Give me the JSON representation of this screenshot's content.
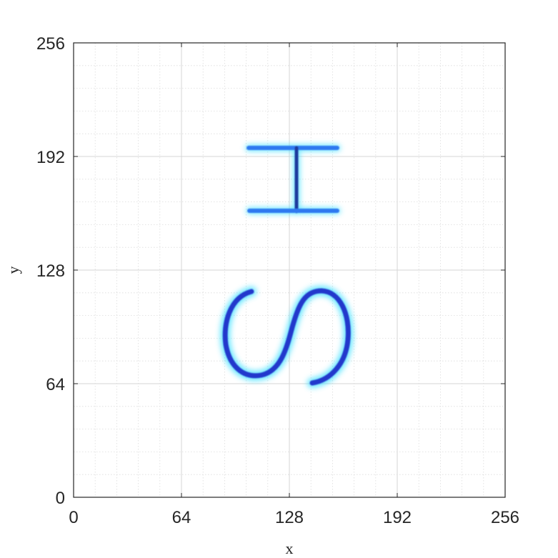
{
  "chart_data": {
    "type": "heatmap",
    "title": "",
    "xlabel": "x",
    "ylabel": "y",
    "xlim": [
      0,
      256
    ],
    "ylim": [
      0,
      256
    ],
    "xticks": [
      "0",
      "64",
      "128",
      "192",
      "256"
    ],
    "yticks": [
      "0",
      "64",
      "128",
      "192",
      "256"
    ],
    "grid": true,
    "minor_grid": true,
    "colormap": [
      "#ffffff",
      "#b8f2ff",
      "#33ddff",
      "#1177ff",
      "#2222cc"
    ],
    "traces": [
      {
        "name": "",
        "points": [
          [
            146,
            197
          ],
          [
            155,
            197
          ],
          [
            104,
            197
          ],
          [
            117,
            197
          ],
          [
            130,
            197
          ],
          [
            143,
            197
          ]
        ]
      }
    ]
  }
}
